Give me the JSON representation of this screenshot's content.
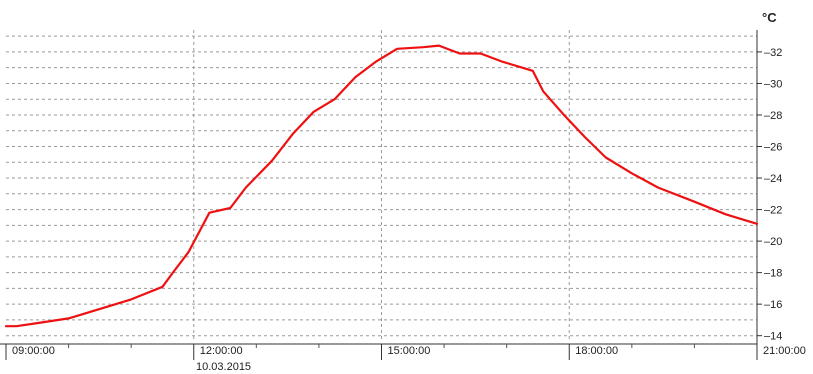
{
  "chart_data": {
    "type": "line",
    "y_unit": "°C",
    "date_label": "10.03.2015",
    "x_ticks": [
      "09:00:00",
      "12:00:00",
      "15:00:00",
      "18:00:00",
      "21:00:00"
    ],
    "x_tick_hours": [
      9,
      12,
      15,
      18,
      21
    ],
    "y_ticks": [
      14,
      16,
      18,
      20,
      22,
      24,
      26,
      28,
      30,
      32
    ],
    "xlim": [
      "09:00",
      "21:00"
    ],
    "ylim": [
      13.6,
      33.2
    ],
    "grid": true,
    "line_color": "#ee1111",
    "series": [
      {
        "x": [
          "09:00",
          "09:10",
          "09:30",
          "10:00",
          "10:30",
          "10:45",
          "11:00",
          "11:30",
          "11:40",
          "11:55",
          "12:15",
          "12:35",
          "12:50",
          "13:15",
          "13:35",
          "13:55",
          "14:15",
          "14:35",
          "14:55",
          "15:15",
          "15:40",
          "15:55",
          "16:15",
          "16:35",
          "16:55",
          "17:25",
          "17:35",
          "17:55",
          "18:15",
          "18:35",
          "19:00",
          "19:25",
          "20:00",
          "20:30",
          "21:00"
        ],
        "y": [
          14.6,
          14.6,
          14.8,
          15.1,
          15.7,
          16.0,
          16.3,
          17.1,
          18.0,
          19.3,
          21.8,
          22.1,
          23.4,
          25.1,
          26.8,
          28.2,
          29.0,
          30.4,
          31.4,
          32.2,
          32.3,
          32.4,
          31.9,
          31.9,
          31.4,
          30.8,
          29.5,
          28.0,
          26.6,
          25.3,
          24.3,
          23.4,
          22.5,
          21.7,
          21.1
        ]
      }
    ]
  }
}
